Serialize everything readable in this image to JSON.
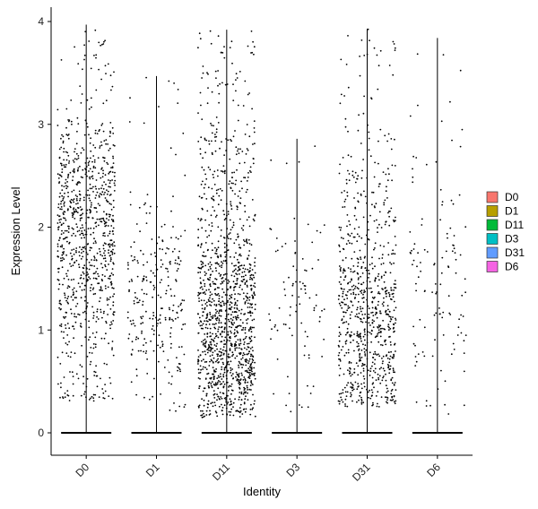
{
  "chart_data": {
    "type": "violin-jitter",
    "xlabel": "Identity",
    "ylabel": "Expression Level",
    "categories": [
      "D0",
      "D1",
      "D11",
      "D3",
      "D31",
      "D6"
    ],
    "ylim": [
      -0.2,
      4.1
    ],
    "yticks": [
      0,
      1,
      2,
      3,
      4
    ],
    "grid": false,
    "legend": {
      "placement": "right",
      "entries": [
        {
          "label": "D0",
          "color": "#F8766D"
        },
        {
          "label": "D1",
          "color": "#B79F00"
        },
        {
          "label": "D11",
          "color": "#00BA38"
        },
        {
          "label": "D3",
          "color": "#00BFC4"
        },
        {
          "label": "D31",
          "color": "#619CFF"
        },
        {
          "label": "D6",
          "color": "#F564E3"
        }
      ]
    },
    "groups": [
      {
        "name": "D0",
        "max": 3.97,
        "n_points": 900,
        "core_low": 0.3,
        "core_high": 3.05,
        "dense_center": 2.25
      },
      {
        "name": "D1",
        "max": 3.47,
        "n_points": 260,
        "core_low": 0.2,
        "core_high": 2.35,
        "dense_center": 1.3
      },
      {
        "name": "D11",
        "max": 3.92,
        "n_points": 1300,
        "core_low": 0.15,
        "core_high": 2.9,
        "dense_center": 0.5
      },
      {
        "name": "D3",
        "max": 2.86,
        "n_points": 90,
        "core_low": 0.15,
        "core_high": 2.1,
        "dense_center": 1.5
      },
      {
        "name": "D31",
        "max": 3.93,
        "n_points": 800,
        "core_low": 0.25,
        "core_high": 2.7,
        "dense_center": 0.55
      },
      {
        "name": "D6",
        "max": 3.84,
        "n_points": 120,
        "core_low": 0.15,
        "core_high": 2.9,
        "dense_center": 1.5
      }
    ]
  }
}
